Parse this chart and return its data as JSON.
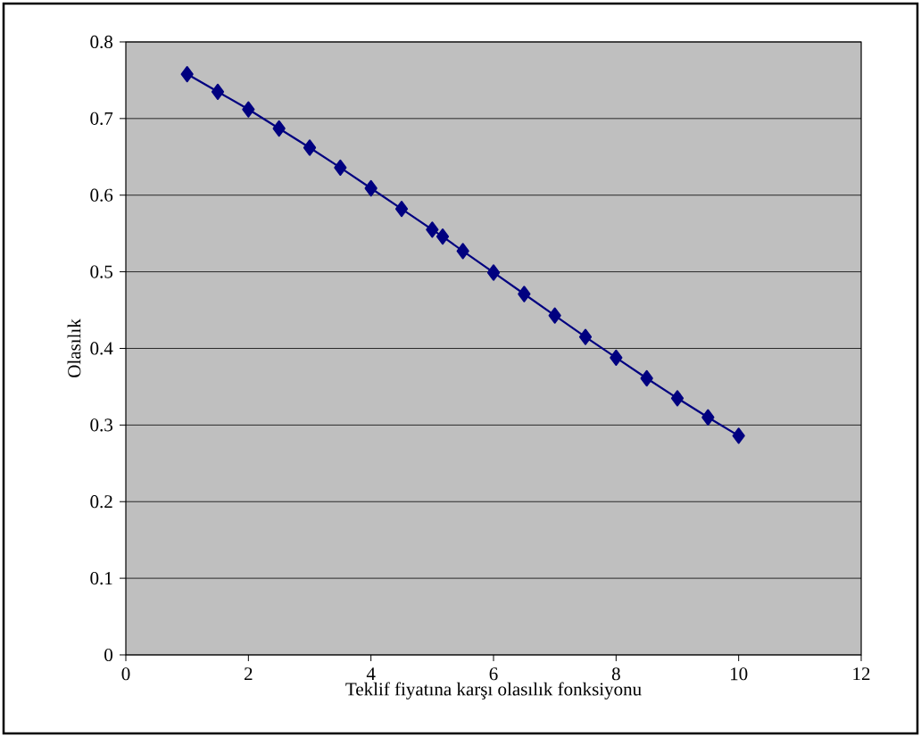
{
  "chart_data": {
    "type": "line",
    "xlabel": "Teklif fiyatına karşı olasılık fonksiyonu",
    "ylabel": "Olasılık",
    "x": [
      1,
      1.5,
      2,
      2.5,
      3,
      3.5,
      4,
      4.5,
      5,
      5.17,
      5.5,
      6,
      6.5,
      7,
      7.5,
      8,
      8.5,
      9,
      9.5,
      10
    ],
    "series": [
      {
        "color": "#000080",
        "values": [
          0.758,
          0.735,
          0.712,
          0.687,
          0.662,
          0.636,
          0.609,
          0.582,
          0.555,
          0.546,
          0.527,
          0.499,
          0.471,
          0.443,
          0.415,
          0.388,
          0.361,
          0.335,
          0.31,
          0.286
        ]
      }
    ],
    "xlim": [
      0,
      12
    ],
    "xticks": [
      0,
      2,
      4,
      6,
      8,
      10,
      12
    ],
    "ylim": [
      0,
      0.8
    ],
    "yticks": [
      0,
      0.1,
      0.2,
      0.3,
      0.4,
      0.5,
      0.6,
      0.7,
      0.8
    ],
    "grid": "y",
    "marker": "diamond",
    "line_style": "solid"
  }
}
